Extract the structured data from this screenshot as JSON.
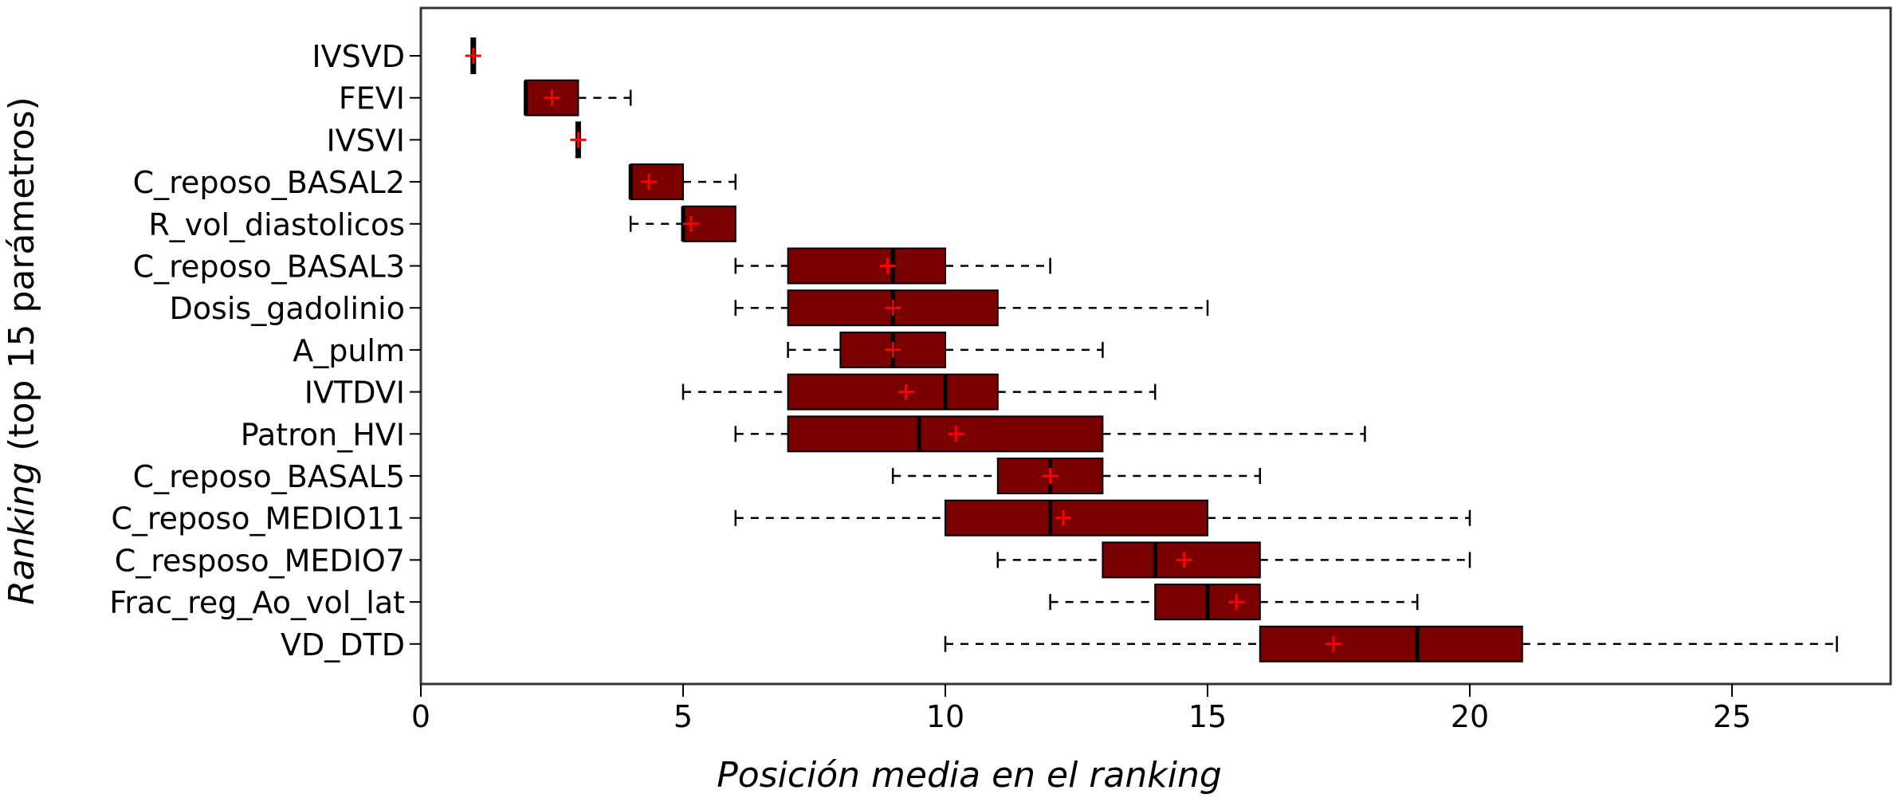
{
  "chart_data": {
    "type": "boxplot",
    "title": "",
    "xlabel": "Posición media en el ranking",
    "ylabel_italic": "Ranking",
    "ylabel_rest": " (top 15 parámetros)",
    "xlim": [
      0,
      28
    ],
    "xticks": [
      0,
      5,
      10,
      15,
      20,
      25
    ],
    "grid": false,
    "legend": "none",
    "colors": {
      "box": "#7a0000",
      "median": "#000000",
      "mean": "#ff0000",
      "whisker": "#000000"
    },
    "categories": [
      "IVSVD",
      "FEVI",
      "IVSVI",
      "C_reposo_BASAL2",
      "R_vol_diastolicos",
      "C_reposo_BASAL3",
      "Dosis_gadolinio",
      "A_pulm",
      "IVTDVI",
      "Patron_HVI",
      "C_reposo_BASAL5",
      "C_reposo_MEDIO11",
      "C_resposo_MEDIO7",
      "Frac_reg_Ao_vol_lat",
      "VD_DTD"
    ],
    "boxes": [
      {
        "min": 1,
        "q1": 1,
        "median": 1,
        "q3": 1,
        "max": 1,
        "mean": 1
      },
      {
        "min": 2,
        "q1": 2,
        "median": 2,
        "q3": 3,
        "max": 4,
        "mean": 2.5
      },
      {
        "min": 3,
        "q1": 3,
        "median": 3,
        "q3": 3,
        "max": 3,
        "mean": 3
      },
      {
        "min": 4,
        "q1": 4,
        "median": 4,
        "q3": 5,
        "max": 6,
        "mean": 4.35
      },
      {
        "min": 4,
        "q1": 5,
        "median": 5,
        "q3": 6,
        "max": 6,
        "mean": 5.15
      },
      {
        "min": 6,
        "q1": 7,
        "median": 9,
        "q3": 10,
        "max": 12,
        "mean": 8.9
      },
      {
        "min": 6,
        "q1": 7,
        "median": 9,
        "q3": 11,
        "max": 15,
        "mean": 9
      },
      {
        "min": 7,
        "q1": 8,
        "median": 9,
        "q3": 10,
        "max": 13,
        "mean": 9
      },
      {
        "min": 5,
        "q1": 7,
        "median": 10,
        "q3": 11,
        "max": 14,
        "mean": 9.25
      },
      {
        "min": 6,
        "q1": 7,
        "median": 9.5,
        "q3": 13,
        "max": 18,
        "mean": 10.2
      },
      {
        "min": 9,
        "q1": 11,
        "median": 12,
        "q3": 13,
        "max": 16,
        "mean": 12
      },
      {
        "min": 6,
        "q1": 10,
        "median": 12,
        "q3": 15,
        "max": 20,
        "mean": 12.25
      },
      {
        "min": 11,
        "q1": 13,
        "median": 14,
        "q3": 16,
        "max": 20,
        "mean": 14.55
      },
      {
        "min": 12,
        "q1": 14,
        "median": 15,
        "q3": 16,
        "max": 19,
        "mean": 15.55
      },
      {
        "min": 10,
        "q1": 16,
        "median": 19,
        "q3": 21,
        "max": 27,
        "mean": 17.4
      }
    ]
  }
}
